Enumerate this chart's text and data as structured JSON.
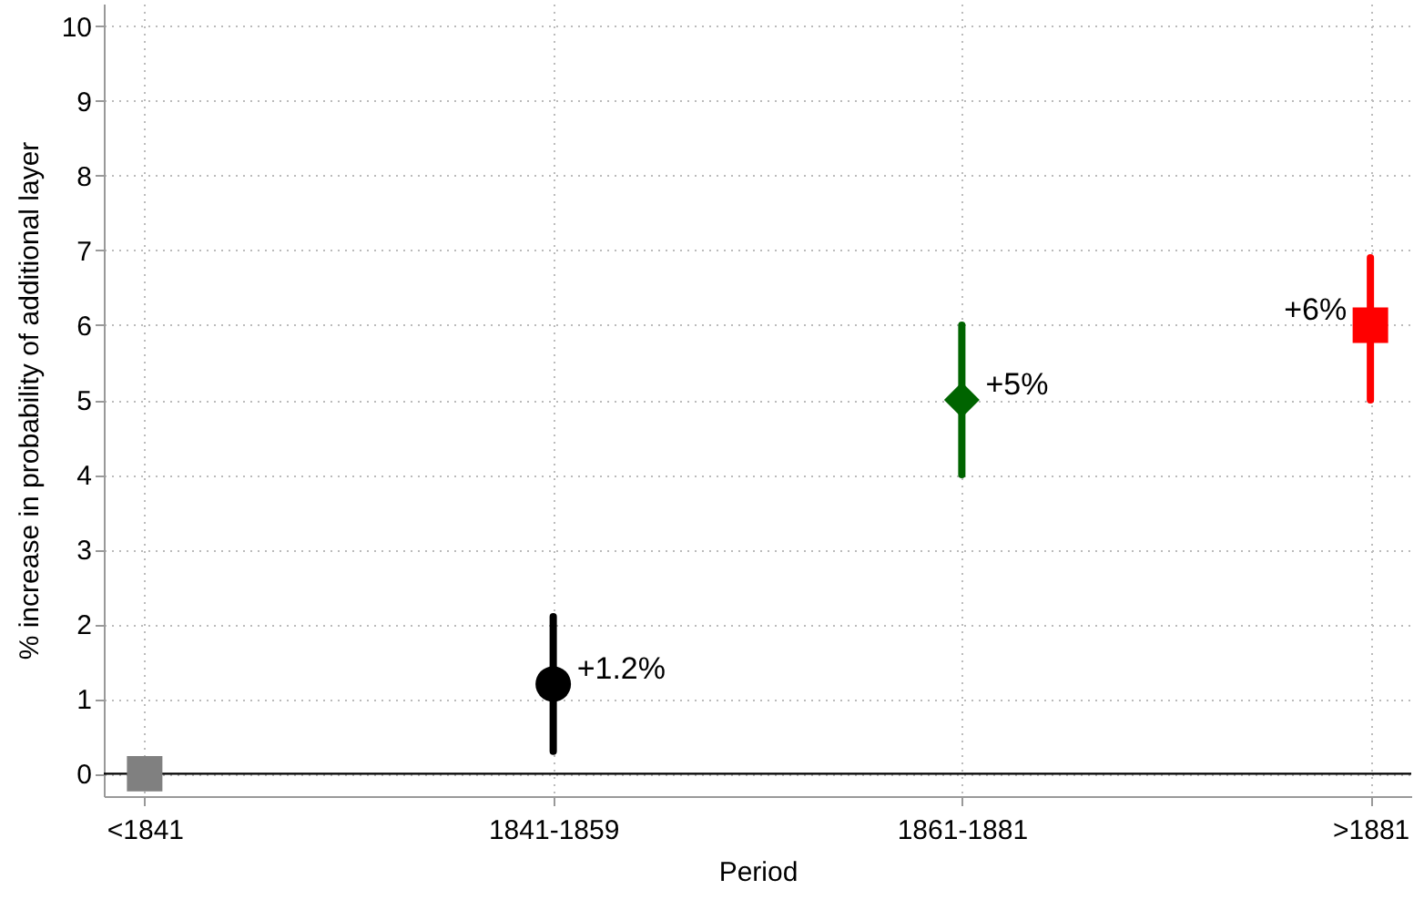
{
  "chart_data": {
    "type": "scatter",
    "xlabel": "Period",
    "ylabel": "% increase in probability of additional layer",
    "categories": [
      "<1841",
      "1841-1859",
      "1861-1881",
      ">1881"
    ],
    "series": [
      {
        "color": "#808080",
        "marker": "square",
        "values": [
          0,
          null,
          null,
          null
        ]
      },
      {
        "color": "#000000",
        "marker": "circle",
        "values": [
          null,
          1.2,
          null,
          null
        ],
        "errors": [
          null,
          [
            0.3,
            2.1
          ],
          null,
          null
        ],
        "value_labels": [
          null,
          "+1.2%",
          null,
          null
        ]
      },
      {
        "color": "#006400",
        "marker": "diamond",
        "values": [
          null,
          null,
          5,
          null
        ],
        "errors": [
          null,
          null,
          [
            4.0,
            6.0
          ],
          null
        ],
        "value_labels": [
          null,
          null,
          "+5%",
          null
        ]
      },
      {
        "color": "#ff0000",
        "marker": "square",
        "values": [
          null,
          null,
          null,
          6
        ],
        "errors": [
          null,
          null,
          null,
          [
            5.0,
            6.9
          ]
        ],
        "value_labels": [
          null,
          null,
          null,
          "+6%"
        ]
      }
    ],
    "ylim": [
      -0.3,
      10.3
    ],
    "yticks": [
      0,
      1,
      2,
      3,
      4,
      5,
      6,
      7,
      8,
      9,
      10
    ],
    "grid": true,
    "ref_lines": [
      {
        "axis": "y",
        "value": 0,
        "color": "#000000"
      }
    ]
  }
}
